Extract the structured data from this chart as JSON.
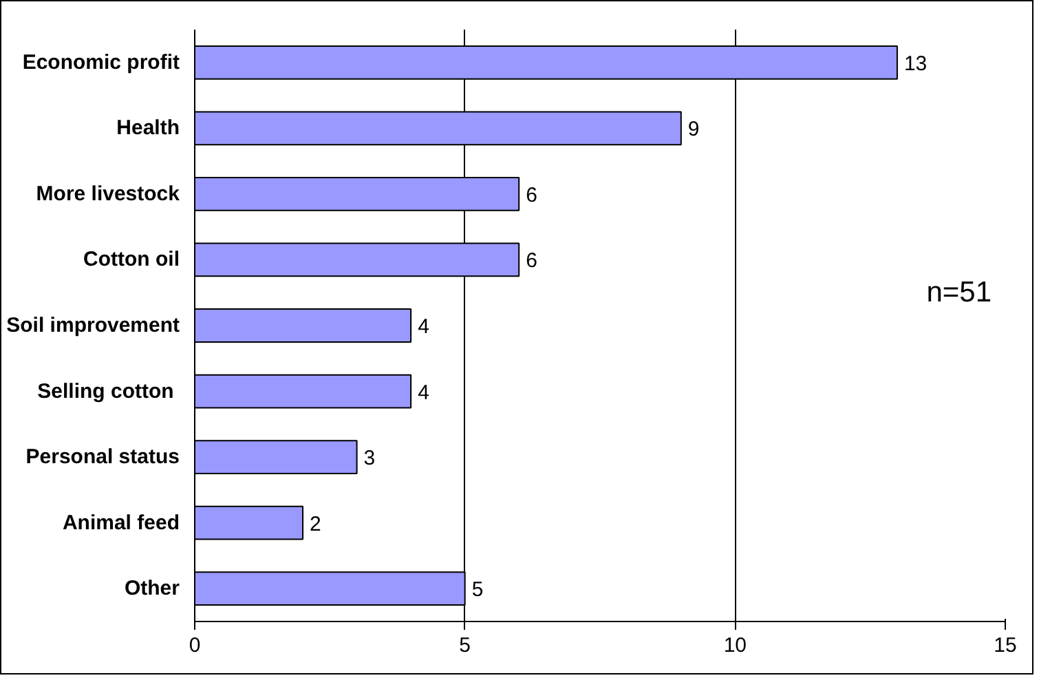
{
  "chart_data": {
    "type": "bar",
    "orientation": "horizontal",
    "categories": [
      "Economic profit",
      "Health",
      "More livestock",
      "Cotton oil",
      "Soil improvement",
      "Selling cotton ",
      "Personal status",
      "Animal feed",
      "Other"
    ],
    "values": [
      13,
      9,
      6,
      6,
      4,
      4,
      3,
      2,
      5
    ],
    "color": "#9999ff",
    "xlim": [
      0,
      15
    ],
    "xticks": [
      0,
      5,
      10,
      15
    ],
    "grid": "x",
    "data_labels": true,
    "annotations": [
      "n=51"
    ]
  }
}
